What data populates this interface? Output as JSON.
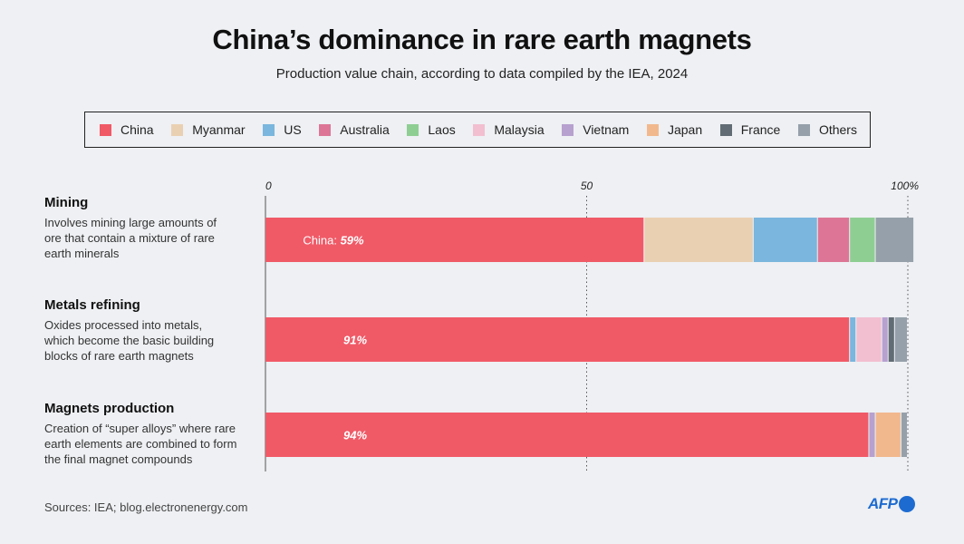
{
  "title": "China’s dominance in rare earth magnets",
  "subtitle": "Production value chain, according to data compiled by the IEA, 2024",
  "legend": [
    {
      "name": "China",
      "color": "#f05a67"
    },
    {
      "name": "Myanmar",
      "color": "#ead0b2"
    },
    {
      "name": "US",
      "color": "#7ab6dd"
    },
    {
      "name": "Australia",
      "color": "#dd7696"
    },
    {
      "name": "Laos",
      "color": "#8fce93"
    },
    {
      "name": "Malaysia",
      "color": "#f2bfd0"
    },
    {
      "name": "Vietnam",
      "color": "#b7a1cf"
    },
    {
      "name": "Japan",
      "color": "#f2b88d"
    },
    {
      "name": "France",
      "color": "#626c74"
    },
    {
      "name": "Others",
      "color": "#95a0aa"
    }
  ],
  "rows": [
    {
      "heading": "Mining",
      "desc": [
        "Involves mining large amounts of",
        "ore that contain a mixture of rare",
        "earth minerals"
      ]
    },
    {
      "heading": "Metals refining",
      "desc": [
        "Oxides processed into metals,",
        "which become the basic building",
        "blocks of rare earth magnets"
      ]
    },
    {
      "heading": "Magnets production",
      "desc": [
        "Creation of “super alloys” where rare",
        "earth elements are combined to form",
        "the final magnet compounds"
      ]
    }
  ],
  "chart_data": {
    "type": "bar",
    "orientation": "horizontal",
    "stacked": true,
    "categories": [
      "Mining",
      "Metals refining",
      "Magnets production"
    ],
    "xlim": [
      0,
      100
    ],
    "ticks": [
      "0",
      "50",
      "100%"
    ],
    "grid": "dotted vertical at 50 and 100",
    "series": [
      {
        "name": "China",
        "values": [
          59,
          91,
          94
        ]
      },
      {
        "name": "Myanmar",
        "values": [
          17,
          0,
          0
        ]
      },
      {
        "name": "US",
        "values": [
          10,
          1,
          0
        ]
      },
      {
        "name": "Australia",
        "values": [
          5,
          0,
          0
        ]
      },
      {
        "name": "Laos",
        "values": [
          4,
          0,
          0
        ]
      },
      {
        "name": "Malaysia",
        "values": [
          0,
          4,
          0
        ]
      },
      {
        "name": "Vietnam",
        "values": [
          0,
          1,
          1
        ]
      },
      {
        "name": "Japan",
        "values": [
          0,
          0,
          4
        ]
      },
      {
        "name": "France",
        "values": [
          0,
          1,
          0
        ]
      },
      {
        "name": "Others",
        "values": [
          6,
          2,
          1
        ]
      }
    ],
    "data_labels": [
      {
        "prefix": "China:",
        "value": "59%"
      },
      {
        "prefix": "",
        "value": "91%"
      },
      {
        "prefix": "",
        "value": "94%"
      }
    ]
  },
  "footer": {
    "source": "Sources: IEA; blog.electronenergy.com",
    "logo": "AFP"
  }
}
